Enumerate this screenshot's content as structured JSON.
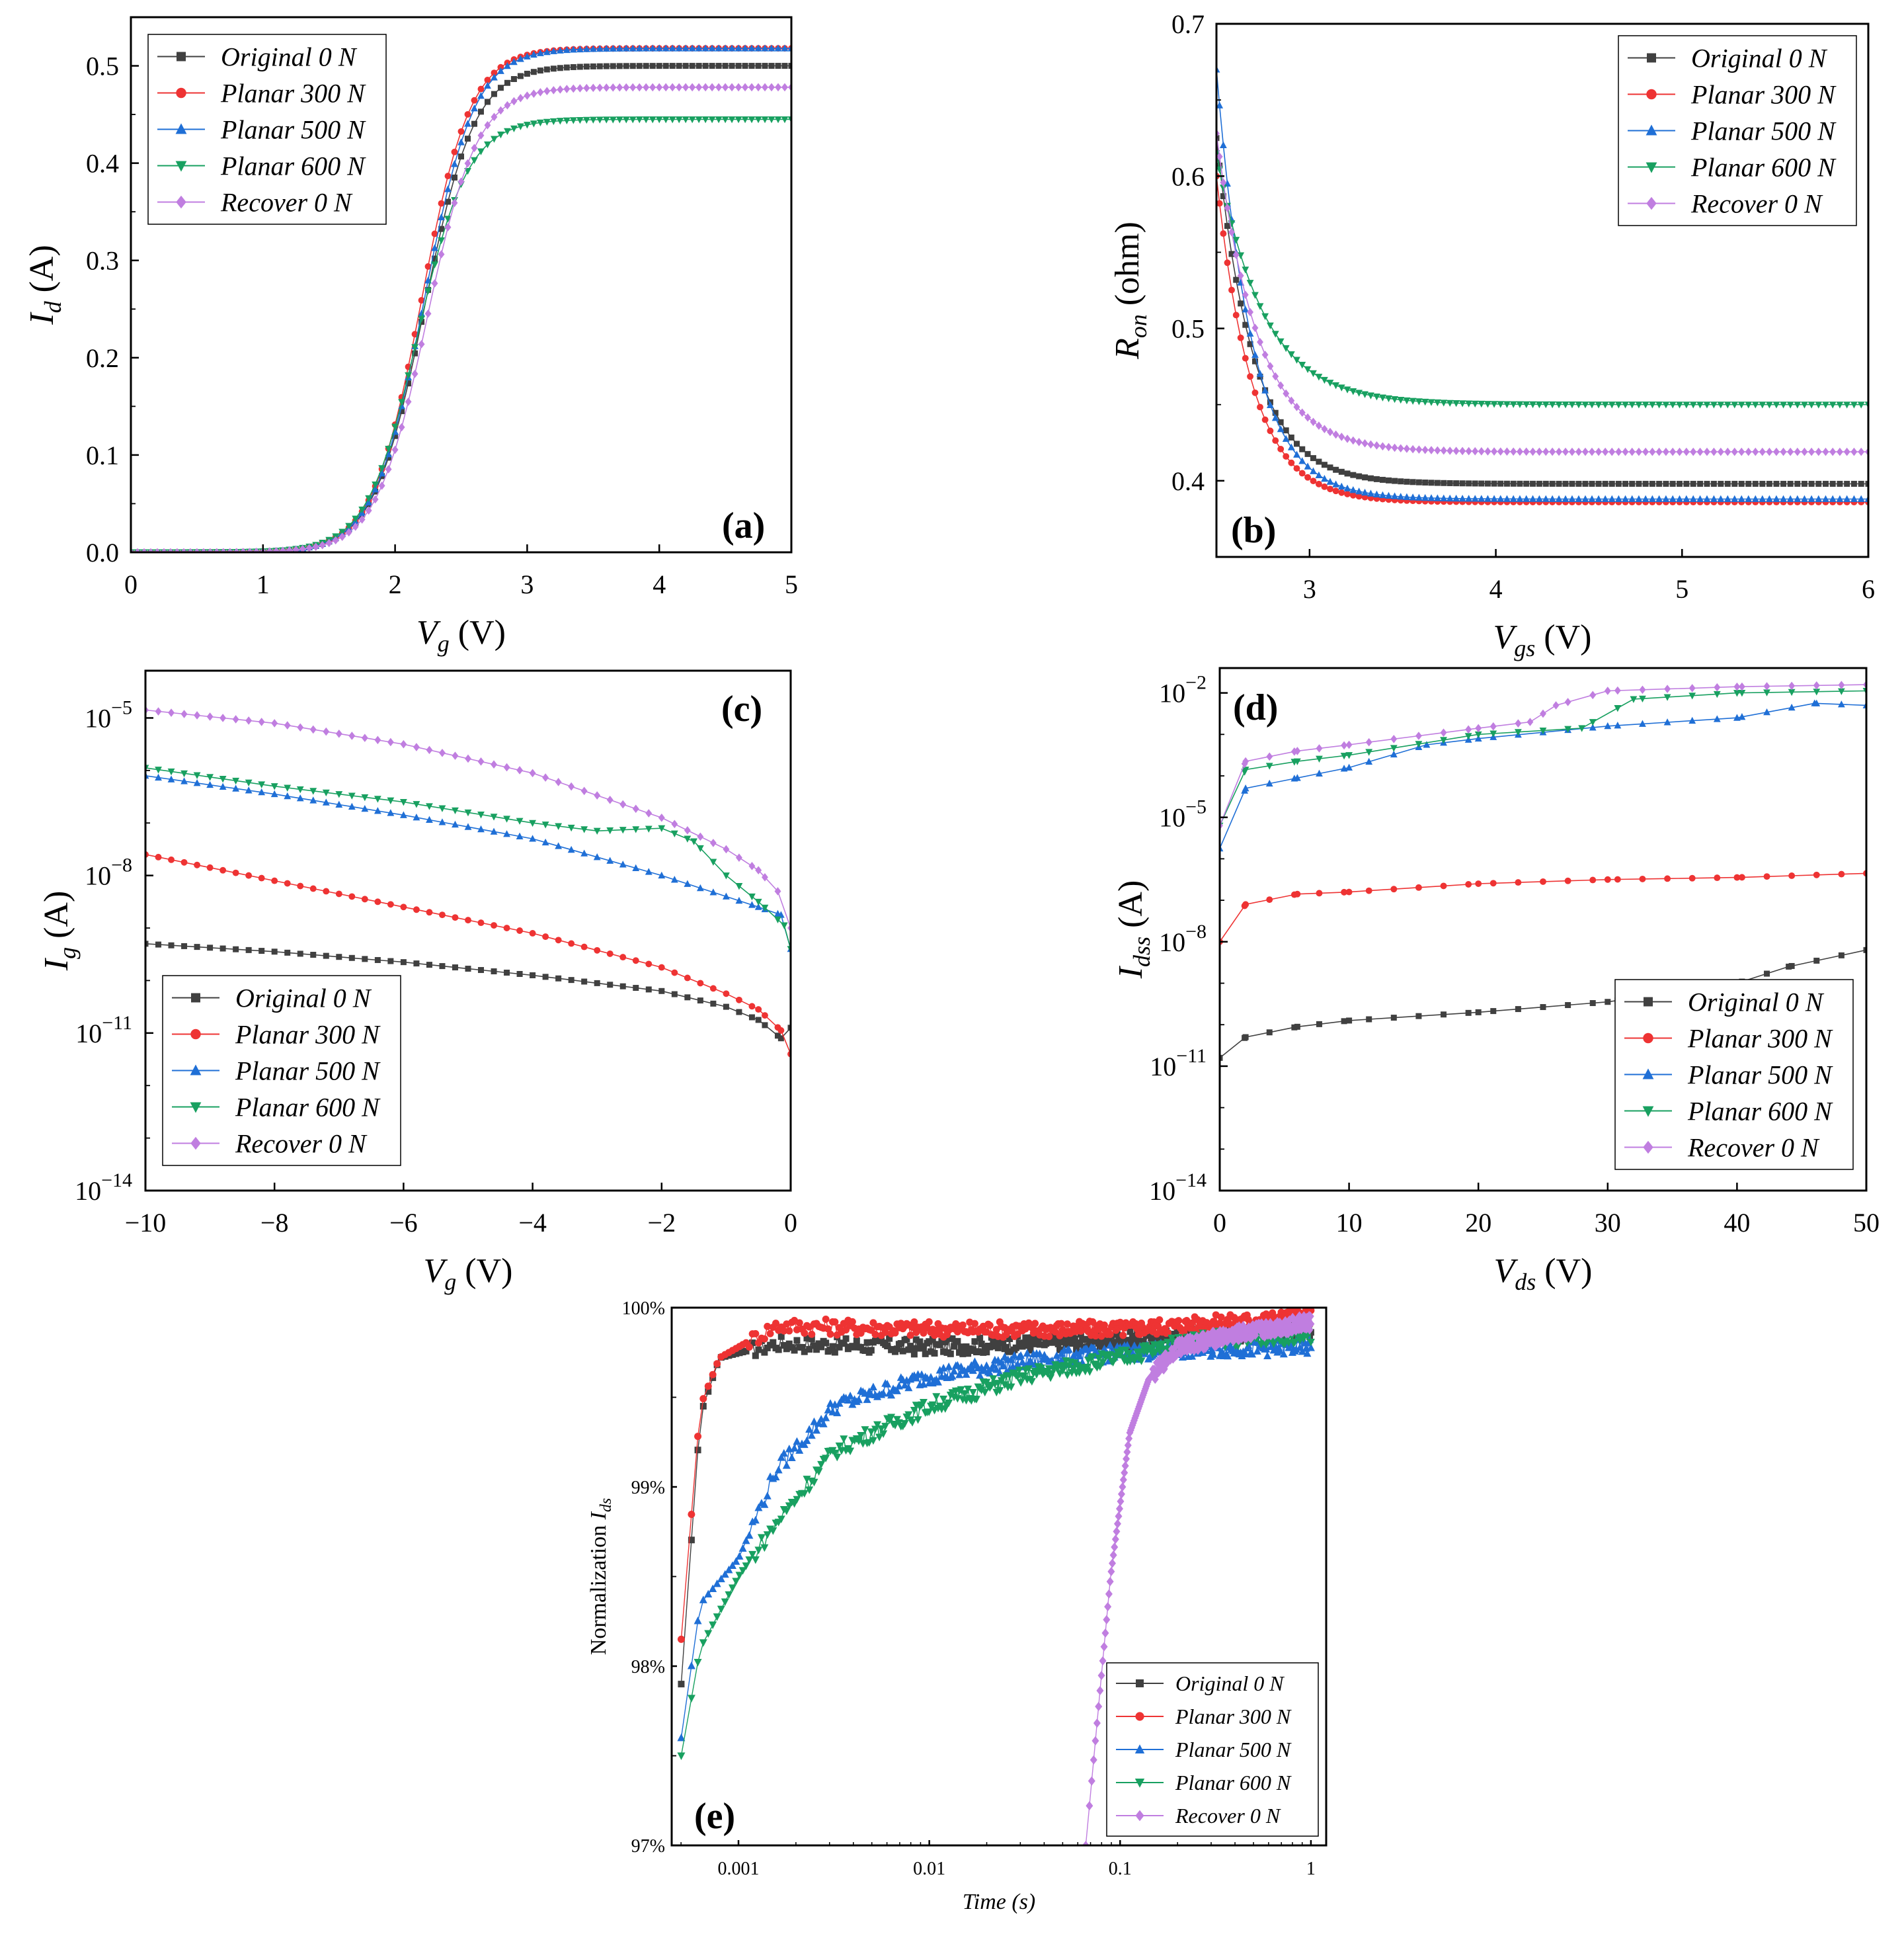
{
  "chart_data": [
    {
      "id": "a",
      "type": "line",
      "panel_label": "(a)",
      "xlabel_main": "V",
      "xlabel_sub": "g",
      "xlabel_unit": " (V)",
      "ylabel_main": "I",
      "ylabel_sub": "d",
      "ylabel_unit": " (A)",
      "xlim": [
        0,
        5
      ],
      "ylim": [
        0,
        0.55
      ],
      "xticks": [
        0,
        1,
        2,
        3,
        4,
        5
      ],
      "xtick_labels": [
        "0",
        "1",
        "2",
        "3",
        "4",
        "5"
      ],
      "yticks": [
        0,
        0.1,
        0.2,
        0.3,
        0.4,
        0.5
      ],
      "ytick_labels": [
        "0.0",
        "0.1",
        "0.2",
        "0.3",
        "0.4",
        "0.5"
      ],
      "legend_position": "top-left",
      "model": "sigmoid",
      "series": [
        {
          "name": "Original 0 N",
          "color": "#404040",
          "marker": "square",
          "params": {
            "sat": 0.5,
            "vth": 2.22,
            "w": 0.19
          }
        },
        {
          "name": "Planar 300 N",
          "color": "#ee3333",
          "marker": "circle",
          "params": {
            "sat": 0.518,
            "vth": 2.2,
            "w": 0.185
          }
        },
        {
          "name": "Planar 500 N",
          "color": "#1f6fd6",
          "marker": "triangle-up",
          "params": {
            "sat": 0.518,
            "vth": 2.22,
            "w": 0.19
          }
        },
        {
          "name": "Planar 600 N",
          "color": "#18a060",
          "marker": "triangle-down",
          "params": {
            "sat": 0.445,
            "vth": 2.17,
            "w": 0.19
          }
        },
        {
          "name": "Recover 0 N",
          "color": "#c07ee0",
          "marker": "diamond",
          "params": {
            "sat": 0.478,
            "vth": 2.24,
            "w": 0.19
          }
        }
      ]
    },
    {
      "id": "b",
      "type": "line",
      "panel_label": "(b)",
      "xlabel_main": "V",
      "xlabel_sub": "gs",
      "xlabel_unit": " (V)",
      "ylabel_main": "R",
      "ylabel_sub": "on",
      "ylabel_unit": " (ohm)",
      "xlim": [
        2.5,
        6
      ],
      "ylim": [
        0.35,
        0.7
      ],
      "xticks": [
        3,
        4,
        5,
        6
      ],
      "xtick_labels": [
        "3",
        "4",
        "5",
        "6"
      ],
      "yticks": [
        0.4,
        0.5,
        0.6,
        0.7
      ],
      "ytick_labels": [
        "0.4",
        "0.5",
        "0.6",
        "0.7"
      ],
      "legend_position": "top-right",
      "model": "decay",
      "series": [
        {
          "name": "Original 0 N",
          "color": "#404040",
          "marker": "square",
          "params": {
            "end": 0.398,
            "start": 0.625,
            "tau": 0.2
          }
        },
        {
          "name": "Planar 300 N",
          "color": "#ee3333",
          "marker": "circle",
          "params": {
            "end": 0.386,
            "start": 0.6,
            "tau": 0.19
          }
        },
        {
          "name": "Planar 500 N",
          "color": "#1f6fd6",
          "marker": "triangle-up",
          "params": {
            "end": 0.388,
            "start": 0.67,
            "tau": 0.19
          }
        },
        {
          "name": "Planar 600 N",
          "color": "#18a060",
          "marker": "triangle-down",
          "params": {
            "end": 0.45,
            "start": 0.615,
            "tau": 0.25
          }
        },
        {
          "name": "Recover 0 N",
          "color": "#c07ee0",
          "marker": "diamond",
          "params": {
            "end": 0.419,
            "start": 0.628,
            "tau": 0.22
          }
        }
      ]
    },
    {
      "id": "c",
      "type": "line",
      "panel_label": "(c)",
      "xlabel_main": "V",
      "xlabel_sub": "g",
      "xlabel_unit": " (V)",
      "ylabel_main": "I",
      "ylabel_sub": "g",
      "ylabel_unit": " (A)",
      "xlim": [
        -10,
        0
      ],
      "ylim_log10": [
        -14,
        -4.1
      ],
      "yscale": "log",
      "xticks": [
        -10,
        -8,
        -6,
        -4,
        -2,
        0
      ],
      "xtick_labels": [
        "−10",
        "−8",
        "−6",
        "−4",
        "−2",
        "0"
      ],
      "yticks_log10": [
        -14,
        -11,
        -8,
        -5
      ],
      "ytick_base": "10",
      "ytick_exps": [
        "−14",
        "−11",
        "−8",
        "−5"
      ],
      "legend_position": "bottom-left",
      "model": "log-points",
      "series": [
        {
          "name": "Original 0 N",
          "color": "#404040",
          "marker": "square",
          "points": [
            [
              -10,
              -9.3
            ],
            [
              -8,
              -9.45
            ],
            [
              -6,
              -9.65
            ],
            [
              -4,
              -9.9
            ],
            [
              -2,
              -10.2
            ],
            [
              -1,
              -10.5
            ],
            [
              -0.5,
              -10.75
            ],
            [
              -0.15,
              -11.1
            ],
            [
              0,
              -10.9
            ]
          ]
        },
        {
          "name": "Planar 300 N",
          "color": "#ee3333",
          "marker": "circle",
          "points": [
            [
              -10,
              -7.6
            ],
            [
              -8,
              -8.1
            ],
            [
              -6,
              -8.6
            ],
            [
              -4,
              -9.1
            ],
            [
              -2,
              -9.75
            ],
            [
              -1,
              -10.25
            ],
            [
              -0.5,
              -10.55
            ],
            [
              -0.15,
              -10.95
            ],
            [
              0,
              -11.4
            ]
          ]
        },
        {
          "name": "Planar 500 N",
          "color": "#1f6fd6",
          "marker": "triangle-up",
          "points": [
            [
              -10,
              -6.1
            ],
            [
              -8,
              -6.45
            ],
            [
              -6,
              -6.85
            ],
            [
              -4,
              -7.3
            ],
            [
              -2,
              -8.0
            ],
            [
              -1,
              -8.4
            ],
            [
              -0.5,
              -8.6
            ],
            [
              -0.15,
              -8.75
            ],
            [
              0,
              -9.4
            ]
          ]
        },
        {
          "name": "Planar 600 N",
          "color": "#18a060",
          "marker": "triangle-down",
          "points": [
            [
              -10,
              -5.95
            ],
            [
              -8,
              -6.3
            ],
            [
              -6,
              -6.6
            ],
            [
              -4,
              -7.0
            ],
            [
              -3,
              -7.15
            ],
            [
              -2,
              -7.1
            ],
            [
              -1.5,
              -7.35
            ],
            [
              -1,
              -8.0
            ],
            [
              -0.5,
              -8.5
            ],
            [
              -0.1,
              -8.95
            ],
            [
              0,
              -9.4
            ]
          ]
        },
        {
          "name": "Recover 0 N",
          "color": "#c07ee0",
          "marker": "diamond",
          "points": [
            [
              -10,
              -4.85
            ],
            [
              -8,
              -5.1
            ],
            [
              -6,
              -5.5
            ],
            [
              -4,
              -6.05
            ],
            [
              -2,
              -6.9
            ],
            [
              -1,
              -7.5
            ],
            [
              -0.5,
              -7.9
            ],
            [
              -0.2,
              -8.3
            ],
            [
              0,
              -9.0
            ]
          ]
        }
      ]
    },
    {
      "id": "d",
      "type": "line",
      "panel_label": "(d)",
      "xlabel_main": "V",
      "xlabel_sub": "ds",
      "xlabel_unit": " (V)",
      "ylabel_main": "I",
      "ylabel_sub": "dss",
      "ylabel_unit": " (A)",
      "xlim": [
        0,
        50
      ],
      "ylim_log10": [
        -14,
        -1.4
      ],
      "yscale": "log",
      "xticks": [
        0,
        10,
        20,
        30,
        40,
        50
      ],
      "xtick_labels": [
        "0",
        "10",
        "20",
        "30",
        "40",
        "50"
      ],
      "yticks_log10": [
        -14,
        -11,
        -8,
        -5,
        -2
      ],
      "ytick_base": "10",
      "ytick_exps": [
        "−14",
        "−11",
        "−8",
        "−5",
        "−2"
      ],
      "legend_position": "bottom-right",
      "model": "log-points",
      "series": [
        {
          "name": "Original 0 N",
          "color": "#404040",
          "marker": "square",
          "points": [
            [
              0,
              -10.8
            ],
            [
              2,
              -10.3
            ],
            [
              6,
              -10.05
            ],
            [
              10,
              -9.9
            ],
            [
              20,
              -9.7
            ],
            [
              30,
              -9.45
            ],
            [
              40,
              -9.0
            ],
            [
              44,
              -8.6
            ],
            [
              50,
              -8.2
            ]
          ]
        },
        {
          "name": "Planar 300 N",
          "color": "#ee3333",
          "marker": "circle",
          "points": [
            [
              0,
              -8.0
            ],
            [
              2,
              -7.1
            ],
            [
              6,
              -6.85
            ],
            [
              10,
              -6.8
            ],
            [
              20,
              -6.6
            ],
            [
              30,
              -6.5
            ],
            [
              40,
              -6.45
            ],
            [
              50,
              -6.35
            ]
          ]
        },
        {
          "name": "Planar 500 N",
          "color": "#1f6fd6",
          "marker": "triangle-up",
          "points": [
            [
              0,
              -5.75
            ],
            [
              2,
              -4.3
            ],
            [
              6,
              -4.05
            ],
            [
              10,
              -3.8
            ],
            [
              16,
              -3.25
            ],
            [
              20,
              -3.1
            ],
            [
              30,
              -2.8
            ],
            [
              40,
              -2.6
            ],
            [
              46,
              -2.25
            ],
            [
              50,
              -2.3
            ]
          ]
        },
        {
          "name": "Planar 600 N",
          "color": "#18a060",
          "marker": "triangle-down",
          "points": [
            [
              0,
              -5.2
            ],
            [
              2,
              -3.85
            ],
            [
              6,
              -3.65
            ],
            [
              10,
              -3.5
            ],
            [
              20,
              -3.0
            ],
            [
              28,
              -2.85
            ],
            [
              32,
              -2.15
            ],
            [
              40,
              -2.0
            ],
            [
              50,
              -1.95
            ]
          ]
        },
        {
          "name": "Recover 0 N",
          "color": "#c07ee0",
          "marker": "diamond",
          "points": [
            [
              0,
              -5.2
            ],
            [
              2,
              -3.65
            ],
            [
              6,
              -3.4
            ],
            [
              10,
              -3.25
            ],
            [
              20,
              -2.85
            ],
            [
              24,
              -2.7
            ],
            [
              26,
              -2.3
            ],
            [
              30,
              -1.95
            ],
            [
              40,
              -1.85
            ],
            [
              50,
              -1.8
            ]
          ]
        }
      ]
    },
    {
      "id": "e",
      "type": "scatter",
      "panel_label": "(e)",
      "xlabel": "Time (s)",
      "ylabel_main": "Normalization ",
      "ylabel_sub_italic": "I",
      "ylabel_sub": "ds",
      "xscale": "log",
      "xlim_log10": [
        -3.35,
        0.08
      ],
      "ylim": [
        97,
        100
      ],
      "xticks_log10": [
        -3,
        -2,
        -1,
        0
      ],
      "xtick_labels": [
        "0.001",
        "0.01",
        "0.1",
        "1"
      ],
      "yticks": [
        97,
        98,
        99,
        100
      ],
      "ytick_labels": [
        "97%",
        "98%",
        "99%",
        "100%"
      ],
      "legend_position": "bottom-right",
      "model": "log-points-dense",
      "series": [
        {
          "name": "Original 0 N",
          "color": "#404040",
          "marker": "square",
          "points": [
            [
              -3.3,
              97.9
            ],
            [
              -3.2,
              99.4
            ],
            [
              -3.1,
              99.72
            ],
            [
              -2.8,
              99.8
            ],
            [
              -2.0,
              99.78
            ],
            [
              -1.0,
              99.82
            ],
            [
              0.0,
              99.88
            ]
          ]
        },
        {
          "name": "Planar 300 N",
          "color": "#ee3333",
          "marker": "circle",
          "points": [
            [
              -3.3,
              98.15
            ],
            [
              -3.2,
              99.45
            ],
            [
              -3.1,
              99.72
            ],
            [
              -2.8,
              99.9
            ],
            [
              -2.0,
              99.88
            ],
            [
              -1.0,
              99.88
            ],
            [
              0.0,
              99.95
            ]
          ]
        },
        {
          "name": "Planar 500 N",
          "color": "#1f6fd6",
          "marker": "triangle-up",
          "points": [
            [
              -3.3,
              97.6
            ],
            [
              -3.2,
              98.35
            ],
            [
              -3.0,
              98.6
            ],
            [
              -2.8,
              99.1
            ],
            [
              -2.5,
              99.45
            ],
            [
              -2.0,
              99.62
            ],
            [
              -1.5,
              99.7
            ],
            [
              -1.0,
              99.75
            ],
            [
              -0.5,
              99.77
            ],
            [
              0.0,
              99.78
            ]
          ]
        },
        {
          "name": "Planar 600 N",
          "color": "#18a060",
          "marker": "triangle-down",
          "points": [
            [
              -3.3,
              97.5
            ],
            [
              -3.2,
              98.1
            ],
            [
              -3.0,
              98.5
            ],
            [
              -2.8,
              98.8
            ],
            [
              -2.5,
              99.2
            ],
            [
              -2.0,
              99.45
            ],
            [
              -1.5,
              99.62
            ],
            [
              -1.0,
              99.72
            ],
            [
              -0.6,
              99.82
            ],
            [
              0.0,
              99.85
            ]
          ]
        },
        {
          "name": "Recover 0 N",
          "color": "#c07ee0",
          "marker": "diamond",
          "points": [
            [
              -1.18,
              97.0
            ],
            [
              -1.05,
              98.5
            ],
            [
              -0.95,
              99.3
            ],
            [
              -0.85,
              99.6
            ],
            [
              -0.7,
              99.78
            ],
            [
              -0.4,
              99.85
            ],
            [
              0.0,
              99.92
            ]
          ]
        }
      ]
    }
  ]
}
